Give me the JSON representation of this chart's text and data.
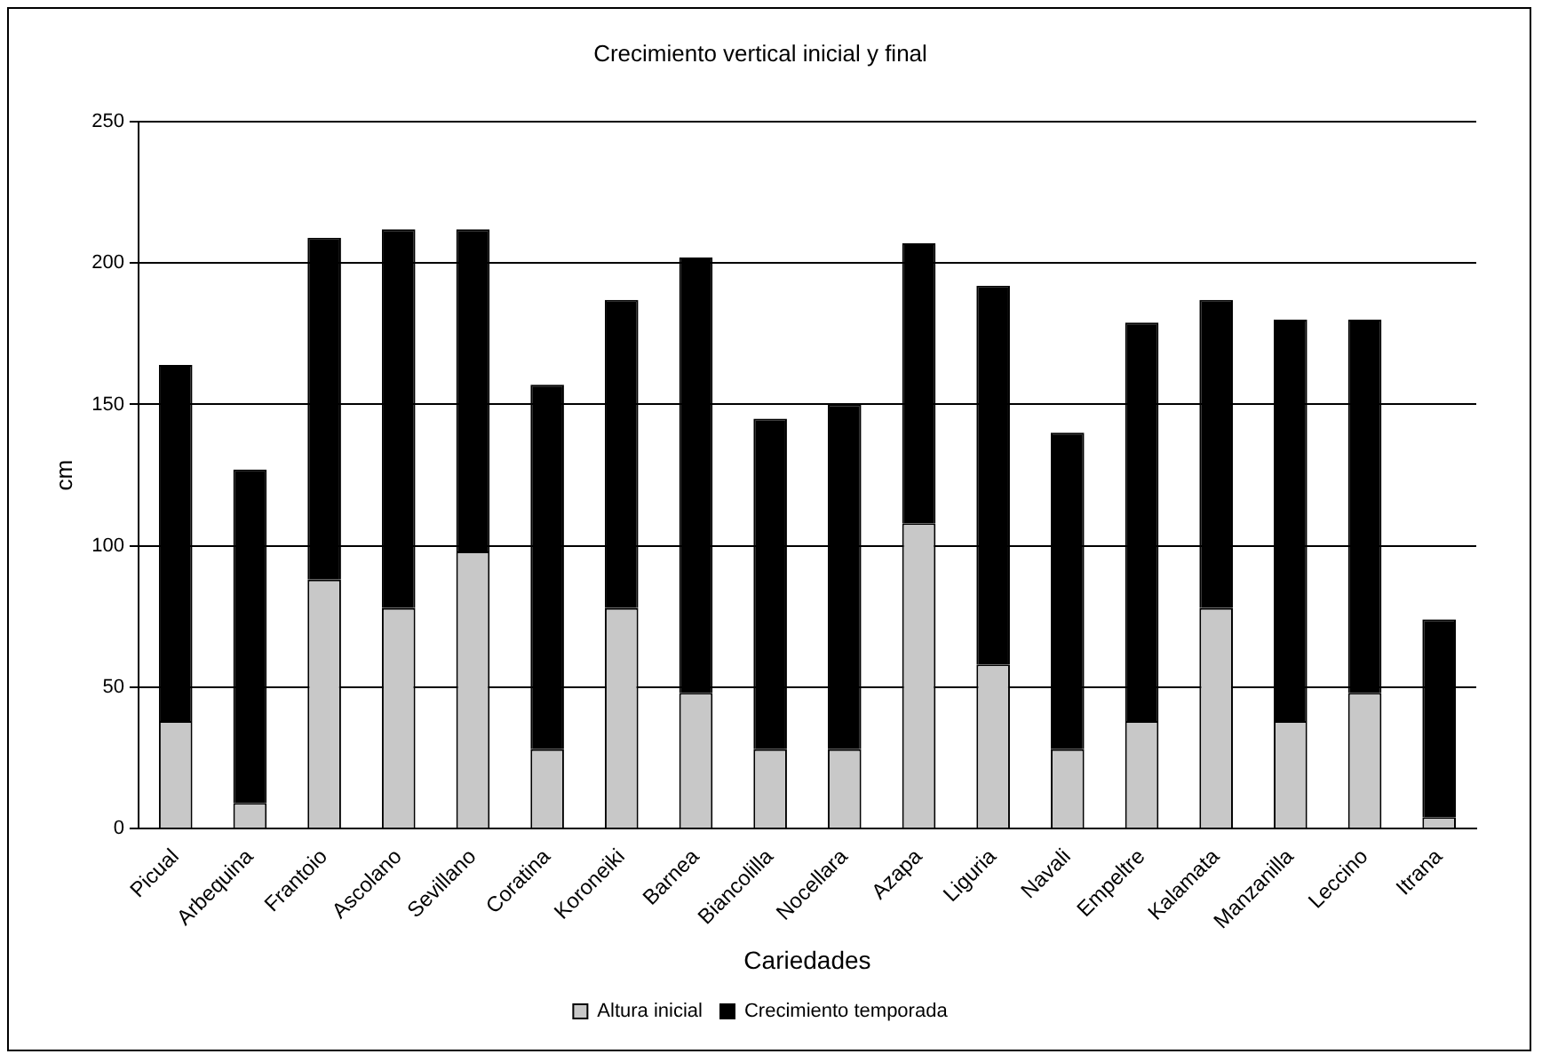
{
  "chart_data": {
    "type": "bar",
    "title": "Crecimiento vertical inicial y final",
    "xlabel": "Cariedades",
    "ylabel": "cm",
    "categories": [
      "Picual",
      "Arbequina",
      "Frantoio",
      "Ascolano",
      "Sevillano",
      "Coratina",
      "Koroneiki",
      "Barnea",
      "Biancolilla",
      "Nocellara",
      "Azapa",
      "Liguria",
      "Navali",
      "Empeltre",
      "Kalamata",
      "Manzanilla",
      "Leccino",
      "Itrana"
    ],
    "series": [
      {
        "name": "Altura inicial",
        "color": "#c8c8c8",
        "values": [
          38,
          9,
          88,
          78,
          98,
          28,
          78,
          48,
          28,
          28,
          108,
          58,
          28,
          38,
          78,
          38,
          48,
          4
        ]
      },
      {
        "name": "Crecimiento temporada",
        "color": "#000000",
        "values": [
          126,
          118,
          121,
          134,
          114,
          129,
          109,
          154,
          117,
          122,
          99,
          134,
          112,
          141,
          109,
          142,
          132,
          70
        ]
      }
    ],
    "stacked": true,
    "ylim": [
      0,
      250
    ],
    "yticks": [
      0,
      50,
      100,
      150,
      200,
      250
    ],
    "grid": "y",
    "legend": "bottom"
  }
}
